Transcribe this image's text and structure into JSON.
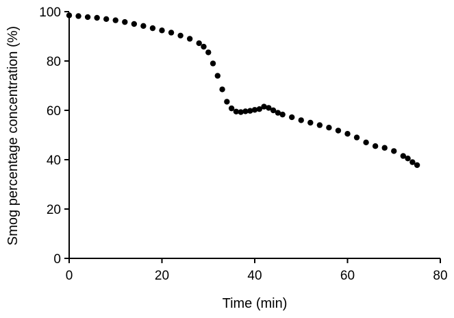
{
  "chart_data": {
    "type": "scatter",
    "title": "",
    "xlabel": "Time (min)",
    "ylabel": "Smog percentage concentration (%)",
    "xlim": [
      0,
      80
    ],
    "ylim": [
      0,
      100
    ],
    "xticks": [
      "0",
      "20",
      "40",
      "60",
      "80"
    ],
    "yticks": [
      "0",
      "20",
      "40",
      "60",
      "80",
      "100"
    ],
    "grid": false,
    "legend": "none",
    "marker_color": "#000000",
    "series": [
      {
        "x": [
          0,
          2,
          4,
          6,
          8,
          10,
          12,
          14,
          16,
          18,
          20,
          22,
          24,
          26,
          28,
          29,
          30,
          31,
          32,
          33,
          34,
          35,
          36,
          37,
          38,
          39,
          40,
          41,
          42,
          43,
          44,
          45,
          46,
          48,
          50,
          52,
          54,
          56,
          58,
          60,
          62,
          64,
          66,
          68,
          70,
          72,
          73,
          74,
          75
        ],
        "y": [
          98.5,
          98.2,
          97.8,
          97.5,
          97.0,
          96.5,
          95.8,
          95.0,
          94.2,
          93.3,
          92.4,
          91.5,
          90.3,
          89.0,
          87.2,
          85.8,
          83.5,
          79.0,
          74.0,
          68.5,
          63.5,
          60.8,
          59.5,
          59.3,
          59.6,
          59.8,
          60.2,
          60.5,
          61.5,
          61.0,
          60.0,
          59.0,
          58.3,
          57.2,
          56.0,
          55.0,
          54.0,
          53.0,
          51.8,
          50.5,
          49.0,
          47.0,
          45.5,
          44.8,
          43.5,
          41.5,
          40.5,
          39.0,
          37.8
        ]
      }
    ]
  }
}
